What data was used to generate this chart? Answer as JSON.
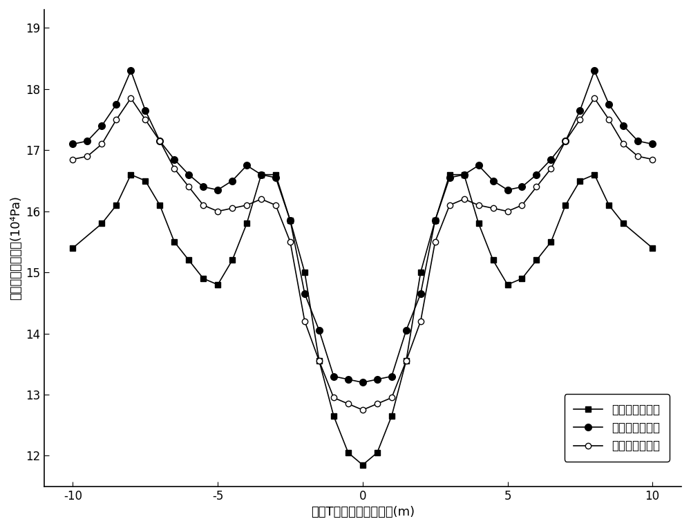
{
  "title": "",
  "xlabel": "多肋T形梁翼板各点坐标(m)",
  "ylabel": "翼板各点正应力值(10⁴Pa)",
  "xlim": [
    -11,
    11
  ],
  "ylim": [
    11.5,
    19.3
  ],
  "yticks": [
    12,
    13,
    14,
    15,
    16,
    17,
    18,
    19
  ],
  "xticks": [
    -10,
    -5,
    0,
    5,
    10
  ],
  "legend_labels": [
    "传统剪滞理论值",
    "本文剪滞理论值",
    "有限元法数值解"
  ],
  "series1_x": [
    -10.0,
    -9.0,
    -8.5,
    -8.0,
    -7.5,
    -7.0,
    -6.5,
    -6.0,
    -5.5,
    -5.0,
    -4.5,
    -4.0,
    -3.5,
    -3.0,
    -2.5,
    -2.0,
    -1.5,
    -1.0,
    -0.5,
    0.0,
    0.5,
    1.0,
    1.5,
    2.0,
    2.5,
    3.0,
    3.5,
    4.0,
    4.5,
    5.0,
    5.5,
    6.0,
    6.5,
    7.0,
    7.5,
    8.0,
    8.5,
    9.0,
    10.0
  ],
  "series1_y": [
    15.4,
    15.8,
    16.1,
    16.6,
    16.5,
    16.1,
    15.5,
    15.2,
    14.9,
    14.8,
    15.2,
    15.8,
    16.6,
    16.6,
    15.85,
    15.0,
    13.55,
    12.65,
    12.05,
    11.85,
    12.05,
    12.65,
    13.55,
    15.0,
    15.85,
    16.6,
    16.6,
    15.8,
    15.2,
    14.8,
    14.9,
    15.2,
    15.5,
    16.1,
    16.5,
    16.6,
    16.1,
    15.8,
    15.4
  ],
  "series2_x": [
    -10.0,
    -9.5,
    -9.0,
    -8.5,
    -8.0,
    -7.5,
    -7.0,
    -6.5,
    -6.0,
    -5.5,
    -5.0,
    -4.5,
    -4.0,
    -3.5,
    -3.0,
    -2.5,
    -2.0,
    -1.5,
    -1.0,
    -0.5,
    0.0,
    0.5,
    1.0,
    1.5,
    2.0,
    2.5,
    3.0,
    3.5,
    4.0,
    4.5,
    5.0,
    5.5,
    6.0,
    6.5,
    7.0,
    7.5,
    8.0,
    8.5,
    9.0,
    9.5,
    10.0
  ],
  "series2_y": [
    17.1,
    17.15,
    17.4,
    17.75,
    18.3,
    17.65,
    17.15,
    16.85,
    16.6,
    16.4,
    16.35,
    16.5,
    16.75,
    16.6,
    16.55,
    15.85,
    14.65,
    14.05,
    13.3,
    13.25,
    13.2,
    13.25,
    13.3,
    14.05,
    14.65,
    15.85,
    16.55,
    16.6,
    16.75,
    16.5,
    16.35,
    16.4,
    16.6,
    16.85,
    17.15,
    17.65,
    18.3,
    17.75,
    17.4,
    17.15,
    17.1
  ],
  "series3_x": [
    -10.0,
    -9.5,
    -9.0,
    -8.5,
    -8.0,
    -7.5,
    -7.0,
    -6.5,
    -6.0,
    -5.5,
    -5.0,
    -4.5,
    -4.0,
    -3.5,
    -3.0,
    -2.5,
    -2.0,
    -1.5,
    -1.0,
    -0.5,
    0.0,
    0.5,
    1.0,
    1.5,
    2.0,
    2.5,
    3.0,
    3.5,
    4.0,
    4.5,
    5.0,
    5.5,
    6.0,
    6.5,
    7.0,
    7.5,
    8.0,
    8.5,
    9.0,
    9.5,
    10.0
  ],
  "series3_y": [
    16.85,
    16.9,
    17.1,
    17.5,
    17.85,
    17.5,
    17.15,
    16.7,
    16.4,
    16.1,
    16.0,
    16.05,
    16.1,
    16.2,
    16.1,
    15.5,
    14.2,
    13.55,
    12.95,
    12.85,
    12.75,
    12.85,
    12.95,
    13.55,
    14.2,
    15.5,
    16.1,
    16.2,
    16.1,
    16.05,
    16.0,
    16.1,
    16.4,
    16.7,
    17.15,
    17.5,
    17.85,
    17.5,
    17.1,
    16.9,
    16.85
  ],
  "line_color": "#000000",
  "bg_color": "#ffffff",
  "marker1": "s",
  "marker2": "o",
  "marker3": "o",
  "markersize1": 6,
  "markersize2": 7,
  "markersize3": 6,
  "markerfacecolor1": "black",
  "markerfacecolor2": "black",
  "markerfacecolor3": "white",
  "fontsize_label": 13,
  "fontsize_tick": 12,
  "fontsize_legend": 12
}
